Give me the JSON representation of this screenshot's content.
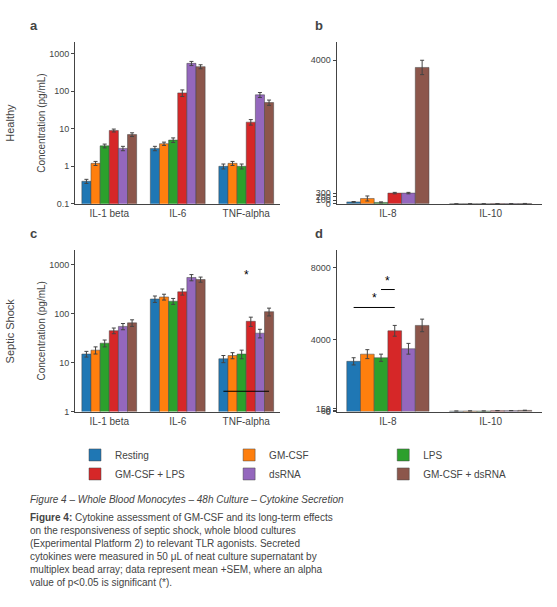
{
  "title": "Figure 4 – Whole Blood Monocytes – 48h Culture – Cytokine Secretion",
  "row_labels": [
    "Healthy",
    "Septic Shock"
  ],
  "caption": "Figure 4: Cytokine assessment of GM-CSF and its long-term effects\non the responsiveness of septic shock, whole blood cultures\n(Experimental Platform 2) to relevant TLR agonists. Secreted\ncytokines were measured in 50 μL of neat culture supernatant by\nmultiplex bead array; data represent mean +SEM, where an alpha\nvalue of p<0.05 is significant (*).",
  "chart_data": [
    {
      "type": "bar",
      "title": "a",
      "ylabel": "Concentration (pg/mL)",
      "log": "y",
      "grid": false,
      "legend": "bottom",
      "categories": [
        "IL-1 beta",
        "IL-6",
        "TNF-alpha"
      ],
      "ylim": [
        0.1,
        2000
      ],
      "yticks": [
        0.1,
        1,
        10,
        100,
        1000
      ],
      "series": [
        {
          "name": "Resting",
          "color": "#1f77b4",
          "values": [
            0.4,
            3.0,
            1.0
          ],
          "errors": [
            0.05,
            0.4,
            0.15
          ]
        },
        {
          "name": "GM-CSF",
          "color": "#ff7f0e",
          "values": [
            1.2,
            4.0,
            1.2
          ],
          "errors": [
            0.15,
            0.4,
            0.15
          ]
        },
        {
          "name": "LPS",
          "color": "#2ca02c",
          "values": [
            3.5,
            5.0,
            1.0
          ],
          "errors": [
            0.4,
            0.7,
            0.15
          ]
        },
        {
          "name": "GM-CSF + LPS",
          "color": "#d62728",
          "values": [
            9.0,
            90.0,
            15.0
          ],
          "errors": [
            0.8,
            18.0,
            2.5
          ]
        },
        {
          "name": "dsRNA",
          "color": "#9467bd",
          "values": [
            3.0,
            550.0,
            80.0
          ],
          "errors": [
            0.4,
            70.0,
            12.0
          ]
        },
        {
          "name": "GM-CSF + dsRNA",
          "color": "#8c564b",
          "values": [
            7.0,
            450.0,
            50.0
          ],
          "errors": [
            0.8,
            55.0,
            8.0
          ]
        }
      ]
    },
    {
      "type": "bar",
      "title": "b",
      "grid": false,
      "categories": [
        "IL-8",
        "IL-10"
      ],
      "ylim": [
        0,
        4500
      ],
      "yticks": [
        0,
        100,
        200,
        300,
        4000
      ],
      "series": [
        {
          "name": "Resting",
          "color": "#1f77b4",
          "values": [
            55,
            3
          ],
          "errors": [
            10,
            1
          ]
        },
        {
          "name": "GM-CSF",
          "color": "#ff7f0e",
          "values": [
            150,
            5
          ],
          "errors": [
            70,
            1
          ]
        },
        {
          "name": "LPS",
          "color": "#2ca02c",
          "values": [
            40,
            5
          ],
          "errors": [
            15,
            1
          ]
        },
        {
          "name": "GM-CSF + LPS",
          "color": "#d62728",
          "values": [
            300,
            8
          ],
          "errors": [
            20,
            2
          ]
        },
        {
          "name": "dsRNA",
          "color": "#9467bd",
          "values": [
            300,
            8
          ],
          "errors": [
            20,
            2
          ]
        },
        {
          "name": "GM-CSF + dsRNA",
          "color": "#8c564b",
          "values": [
            3800,
            10
          ],
          "errors": [
            200,
            2
          ]
        }
      ]
    },
    {
      "type": "bar",
      "title": "c",
      "ylabel": "Concentration (pg/mL)",
      "log": "y",
      "grid": false,
      "categories": [
        "IL-1 beta",
        "IL-6",
        "TNF-alpha"
      ],
      "ylim": [
        1,
        2000
      ],
      "yticks": [
        1,
        10,
        100,
        1000
      ],
      "series": [
        {
          "name": "Resting",
          "color": "#1f77b4",
          "values": [
            15,
            200,
            12
          ],
          "errors": [
            2,
            30,
            2
          ]
        },
        {
          "name": "GM-CSF",
          "color": "#ff7f0e",
          "values": [
            18,
            220,
            14
          ],
          "errors": [
            3,
            30,
            2
          ]
        },
        {
          "name": "LPS",
          "color": "#2ca02c",
          "values": [
            25,
            180,
            15
          ],
          "errors": [
            4,
            25,
            3
          ]
        },
        {
          "name": "GM-CSF + LPS",
          "color": "#d62728",
          "values": [
            45,
            280,
            70
          ],
          "errors": [
            6,
            40,
            15
          ]
        },
        {
          "name": "dsRNA",
          "color": "#9467bd",
          "values": [
            55,
            550,
            40
          ],
          "errors": [
            8,
            80,
            8
          ]
        },
        {
          "name": "GM-CSF + dsRNA",
          "color": "#8c564b",
          "values": [
            65,
            500,
            110
          ],
          "errors": [
            10,
            60,
            20
          ]
        }
      ],
      "annotations": [
        {
          "text": "*",
          "category": "TNF-alpha",
          "from": "Resting",
          "to": "GM-CSF + dsRNA",
          "y": 400
        }
      ]
    },
    {
      "type": "bar",
      "title": "d",
      "grid": false,
      "categories": [
        "IL-8",
        "IL-10"
      ],
      "ylim": [
        0,
        9000
      ],
      "yticks": [
        0,
        60,
        150,
        4000,
        8000
      ],
      "series": [
        {
          "name": "Resting",
          "color": "#1f77b4",
          "values": [
            2800,
            25
          ],
          "errors": [
            200,
            5
          ]
        },
        {
          "name": "GM-CSF",
          "color": "#ff7f0e",
          "values": [
            3200,
            32
          ],
          "errors": [
            250,
            6
          ]
        },
        {
          "name": "LPS",
          "color": "#2ca02c",
          "values": [
            3000,
            30
          ],
          "errors": [
            200,
            5
          ]
        },
        {
          "name": "GM-CSF + LPS",
          "color": "#d62728",
          "values": [
            4500,
            50
          ],
          "errors": [
            300,
            8
          ]
        },
        {
          "name": "dsRNA",
          "color": "#9467bd",
          "values": [
            3500,
            52
          ],
          "errors": [
            300,
            8
          ]
        },
        {
          "name": "GM-CSF + dsRNA",
          "color": "#8c564b",
          "values": [
            4800,
            65
          ],
          "errors": [
            350,
            12
          ]
        }
      ],
      "annotations": [
        {
          "text": "*",
          "category": "IL-8",
          "from": "Resting",
          "to": "GM-CSF + LPS",
          "y": 5800
        },
        {
          "text": "*",
          "category": "IL-8",
          "from": "LPS",
          "to": "GM-CSF + LPS",
          "y": 6800
        }
      ]
    }
  ]
}
